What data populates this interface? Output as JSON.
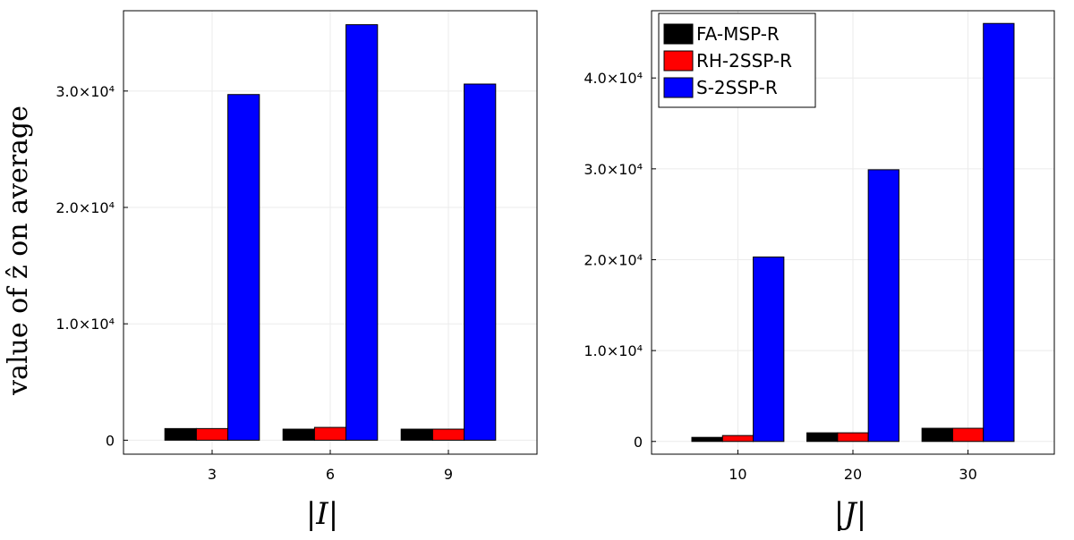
{
  "chart_data": [
    {
      "type": "bar",
      "ylabel": "value of ẑ on average",
      "xlabel": "|I|",
      "categories": [
        "3",
        "6",
        "9"
      ],
      "series": [
        {
          "name": "FA-MSP-R",
          "color": "#000000",
          "values": [
            1000,
            950,
            950
          ]
        },
        {
          "name": "RH-2SSP-R",
          "color": "#ff0000",
          "values": [
            1000,
            1100,
            950
          ]
        },
        {
          "name": "S-2SSP-R",
          "color": "#0000ff",
          "values": [
            29700,
            35700,
            30600
          ]
        }
      ],
      "ylim": [
        -1200,
        36900
      ],
      "yticks": [
        0,
        10000,
        20000,
        30000
      ],
      "ytick_labels": [
        "0",
        "1.0×10⁴",
        "2.0×10⁴",
        "3.0×10⁴"
      ],
      "grid": true,
      "legend": null
    },
    {
      "type": "bar",
      "ylabel": "",
      "xlabel": "|J|",
      "categories": [
        "10",
        "20",
        "30"
      ],
      "series": [
        {
          "name": "FA-MSP-R",
          "color": "#000000",
          "values": [
            450,
            950,
            1450
          ]
        },
        {
          "name": "RH-2SSP-R",
          "color": "#ff0000",
          "values": [
            650,
            950,
            1450
          ]
        },
        {
          "name": "S-2SSP-R",
          "color": "#0000ff",
          "values": [
            20300,
            29900,
            46000
          ]
        }
      ],
      "ylim": [
        -1400,
        47400
      ],
      "yticks": [
        0,
        10000,
        20000,
        30000,
        40000
      ],
      "ytick_labels": [
        "0",
        "1.0×10⁴",
        "2.0×10⁴",
        "3.0×10⁴",
        "4.0×10⁴"
      ],
      "grid": true,
      "legend": "top-left"
    }
  ]
}
